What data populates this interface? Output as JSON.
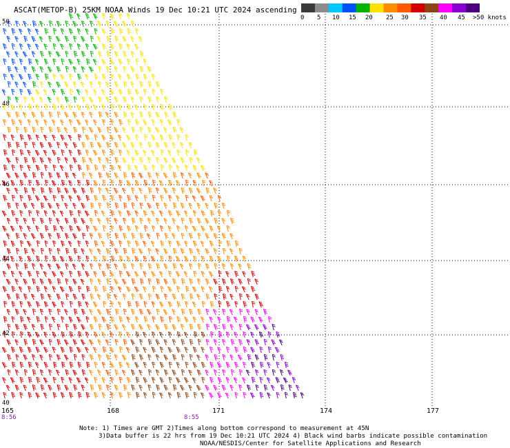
{
  "title": "ASCAT(METOP-B) 25KM NOAA Winds 19 Dec 10:21 UTC 2024 ascending",
  "colorbar": {
    "colors": [
      "#3a3a3a",
      "#8c8c8c",
      "#00c8ff",
      "#0050ff",
      "#00b400",
      "#ffe100",
      "#ff8c00",
      "#ff5a00",
      "#d20000",
      "#8b4513",
      "#ff00ff",
      "#8a00d2",
      "#4b0082"
    ],
    "labels": [
      "0",
      "5",
      "10",
      "15",
      "20",
      "25",
      "30",
      "35",
      "40",
      "45",
      ">50 knots"
    ]
  },
  "axes": {
    "lat_labels": [
      "50",
      "48",
      "46",
      "44",
      "42",
      "40"
    ],
    "lon_labels": [
      "165",
      "168",
      "171",
      "174",
      "177"
    ],
    "time_labels": [
      "8:56",
      "8:55"
    ]
  },
  "notes": {
    "line1": "Note: 1) Times are GMT 2)Times along bottom correspond to measurement at 45N",
    "line2": "3)Data buffer is 22 hrs from 19 Dec 10:21 UTC 2024 4) Black wind barbs indicate possible contamination",
    "line3": "NOAA/NESDIS/Center for Satellite Applications and Research"
  },
  "chart_data": {
    "type": "wind-barb-map",
    "lat_range": [
      40,
      50.5
    ],
    "lon_range": [
      165,
      179
    ],
    "speed_bins_knots": [
      0,
      5,
      10,
      15,
      20,
      25,
      30,
      35,
      40,
      45,
      50
    ],
    "regions": [
      {
        "area": "northwest corner near 49-50N 165-166E",
        "speed_knots": "10-20"
      },
      {
        "area": "north swath 47-50N",
        "speed_knots": "15-25"
      },
      {
        "area": "central swath 44-47N",
        "speed_knots": "25-35"
      },
      {
        "area": "south-west swath 40-44N",
        "speed_knots": "35-40"
      },
      {
        "area": "south-east swath 40-42.5N 169-172E",
        "speed_knots": "40-50"
      }
    ]
  }
}
